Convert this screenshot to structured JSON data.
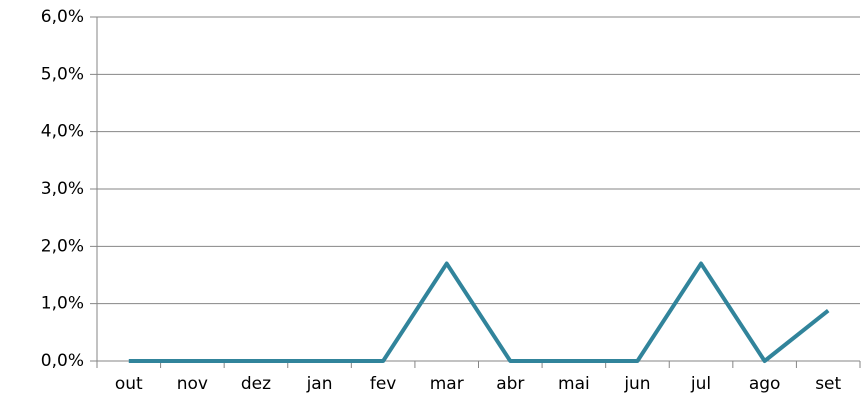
{
  "chart_data": {
    "type": "line",
    "categories": [
      "out",
      "nov",
      "dez",
      "jan",
      "fev",
      "mar",
      "abr",
      "mai",
      "jun",
      "jul",
      "ago",
      "set"
    ],
    "values": [
      0,
      0,
      0,
      0,
      0,
      1.7,
      0,
      0,
      0,
      1.7,
      0,
      0.88
    ],
    "color": "#31849b",
    "ylim": [
      0,
      6
    ],
    "yticks": [
      {
        "value": 0,
        "label": "0,0%"
      },
      {
        "value": 1,
        "label": "1,0%"
      },
      {
        "value": 2,
        "label": "2,0%"
      },
      {
        "value": 3,
        "label": "3,0%"
      },
      {
        "value": 4,
        "label": "4,0%"
      },
      {
        "value": 5,
        "label": "5,0%"
      },
      {
        "value": 6,
        "label": "6,0%"
      }
    ],
    "grid": true
  }
}
